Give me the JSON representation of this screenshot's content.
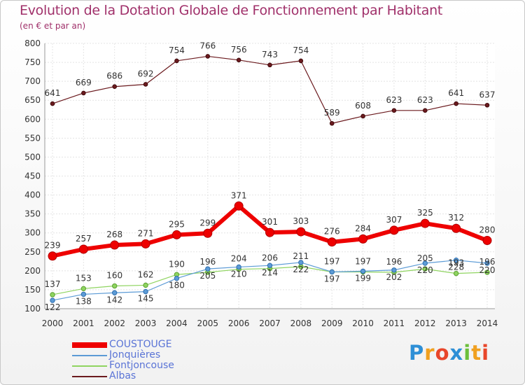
{
  "chart_data": {
    "type": "line",
    "title": "Evolution de la Dotation Globale de Fonctionnement par Habitant",
    "subtitle": "(en € et par an)",
    "xlabel": "",
    "ylabel": "",
    "ylim": [
      100,
      800
    ],
    "yticks": [
      100,
      150,
      200,
      250,
      300,
      350,
      400,
      450,
      500,
      550,
      600,
      650,
      700,
      750,
      800
    ],
    "grid": true,
    "legend_position": "bottom-left",
    "categories": [
      "2000",
      "2001",
      "2002",
      "2003",
      "2004",
      "2005",
      "2006",
      "2007",
      "2008",
      "2009",
      "2010",
      "2011",
      "2012",
      "2013",
      "2014"
    ],
    "series": [
      {
        "name": "Albas",
        "color": "#6b1a1e",
        "values": [
          641,
          669,
          686,
          692,
          754,
          766,
          756,
          743,
          754,
          589,
          608,
          623,
          623,
          641,
          637
        ]
      },
      {
        "name": "Fontjoncouse",
        "color": "#8fd460",
        "values": [
          137,
          153,
          160,
          162,
          190,
          196,
          204,
          206,
          211,
          197,
          197,
          196,
          205,
          193,
          196
        ]
      },
      {
        "name": "Jonquières",
        "color": "#5c9bd6",
        "values": [
          122,
          138,
          142,
          145,
          180,
          205,
          210,
          214,
          222,
          197,
          199,
          202,
          220,
          228,
          220
        ]
      },
      {
        "name": "COUSTOUGE",
        "color": "#ee0000",
        "values": [
          239,
          257,
          268,
          271,
          295,
          299,
          371,
          301,
          303,
          276,
          284,
          307,
          325,
          312,
          280
        ]
      }
    ]
  },
  "legend_order": [
    "COUSTOUGE",
    "Jonquières",
    "Fontjoncouse",
    "Albas"
  ],
  "brand": {
    "letters": [
      "P",
      "r",
      "o",
      "x",
      "i",
      "t",
      "i"
    ],
    "colors": [
      "#2e8fd6",
      "#f0a020",
      "#e8462a",
      "#2e8fd6",
      "#6cbf3a",
      "#f0a020",
      "#e8462a"
    ]
  }
}
